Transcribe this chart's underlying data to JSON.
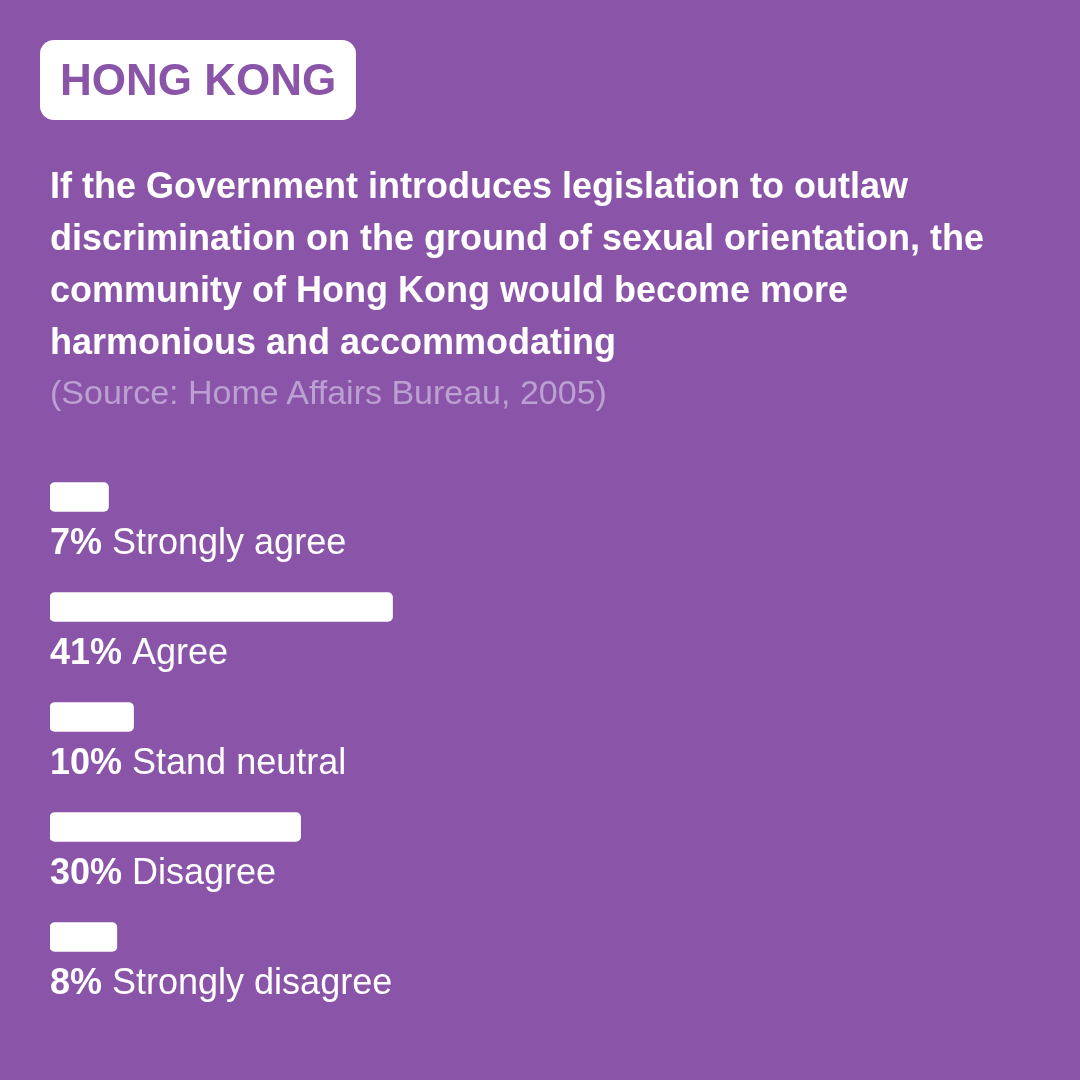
{
  "chart_data": {
    "type": "bar",
    "orientation": "horizontal",
    "title": "HONG KONG",
    "subtitle": "If the Government introduces legislation to outlaw discrimination on the ground of sexual orientation, the community of Hong Kong would become more harmonious and accommodating",
    "annotations": [
      "(Source: Home Affairs Bureau, 2005)"
    ],
    "categories": [
      "Strongly agree",
      "Agree",
      "Stand neutral",
      "Disagree",
      "Strongly disagree"
    ],
    "values": [
      7,
      41,
      10,
      30,
      8
    ],
    "value_labels": [
      "7%",
      "41%",
      "10%",
      "30%",
      "8%"
    ],
    "color": "#ffffff",
    "tick_labels": false,
    "legend": false
  }
}
